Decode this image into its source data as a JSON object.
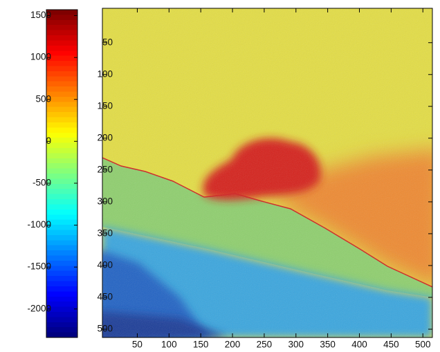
{
  "chart_data": {
    "type": "heatmap",
    "colormap": "jet",
    "xlim": [
      -5,
      515
    ],
    "xticks": [
      50,
      100,
      150,
      200,
      250,
      300,
      350,
      400,
      450,
      500
    ],
    "ylim": [
      -4,
      513
    ],
    "yticks": [
      50,
      100,
      150,
      200,
      250,
      300,
      350,
      400,
      450,
      500
    ],
    "colorbar": {
      "clim": [
        -2340,
        1570
      ],
      "ticks": [
        1500,
        1000,
        500,
        0,
        -500,
        -1000,
        -1500,
        -2000
      ]
    }
  }
}
